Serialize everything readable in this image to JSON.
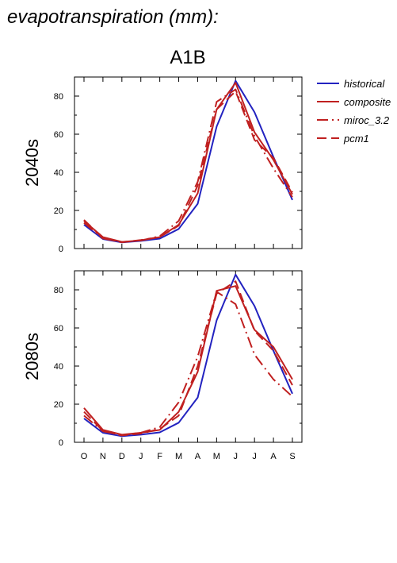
{
  "page_title": "evapotranspiration (mm):",
  "chart_data": {
    "type": "line",
    "scenario": "A1B",
    "categories": [
      "O",
      "N",
      "D",
      "J",
      "F",
      "M",
      "A",
      "M",
      "J",
      "J",
      "A",
      "S"
    ],
    "ylim": [
      0,
      90
    ],
    "yticks": [
      0,
      20,
      40,
      60,
      80
    ],
    "legend": {
      "placement": "right",
      "entries": [
        {
          "name": "historical",
          "color": "#2323c0",
          "dash": "solid"
        },
        {
          "name": "composite",
          "color": "#c02020",
          "dash": "solid"
        },
        {
          "name": "miroc_3.2",
          "color": "#c02020",
          "dash": "dash-dot"
        },
        {
          "name": "pcm1",
          "color": "#c02020",
          "dash": "dash"
        }
      ]
    },
    "panels": [
      {
        "label": "2040s",
        "series": [
          {
            "name": "historical",
            "values": [
              12.5,
              5.0,
              3.2,
              4.0,
              5.2,
              10.3,
              23.5,
              64.0,
              88.0,
              71.5,
              48.0,
              25.5
            ]
          },
          {
            "name": "composite",
            "values": [
              14.5,
              6.0,
              3.5,
              4.3,
              6.0,
              12.5,
              29.0,
              73.0,
              87.0,
              61.0,
              46.5,
              28.5
            ]
          },
          {
            "name": "miroc_3.2",
            "values": [
              13.5,
              5.3,
              3.4,
              4.2,
              6.5,
              14.5,
              35.0,
              77.0,
              83.5,
              59.0,
              42.0,
              27.0
            ]
          },
          {
            "name": "pcm1",
            "values": [
              15.0,
              5.5,
              3.3,
              4.5,
              6.0,
              12.0,
              33.0,
              73.0,
              82.5,
              57.0,
              47.5,
              29.5
            ]
          }
        ]
      },
      {
        "label": "2080s",
        "series": [
          {
            "name": "historical",
            "values": [
              12.5,
              5.0,
              3.2,
              4.0,
              5.2,
              10.3,
              23.5,
              64.0,
              88.0,
              71.5,
              48.0,
              25.5
            ]
          },
          {
            "name": "composite",
            "values": [
              18.0,
              6.5,
              4.0,
              5.0,
              6.5,
              16.0,
              37.0,
              79.5,
              82.0,
              59.0,
              50.0,
              33.0
            ]
          },
          {
            "name": "miroc_3.2",
            "values": [
              14.0,
              5.8,
              3.8,
              5.0,
              8.0,
              21.0,
              45.0,
              79.0,
              72.5,
              46.0,
              33.0,
              24.0
            ]
          },
          {
            "name": "pcm1",
            "values": [
              16.0,
              6.0,
              3.6,
              4.6,
              7.0,
              14.0,
              40.0,
              78.0,
              84.5,
              58.5,
              48.0,
              30.0
            ]
          }
        ]
      }
    ]
  }
}
